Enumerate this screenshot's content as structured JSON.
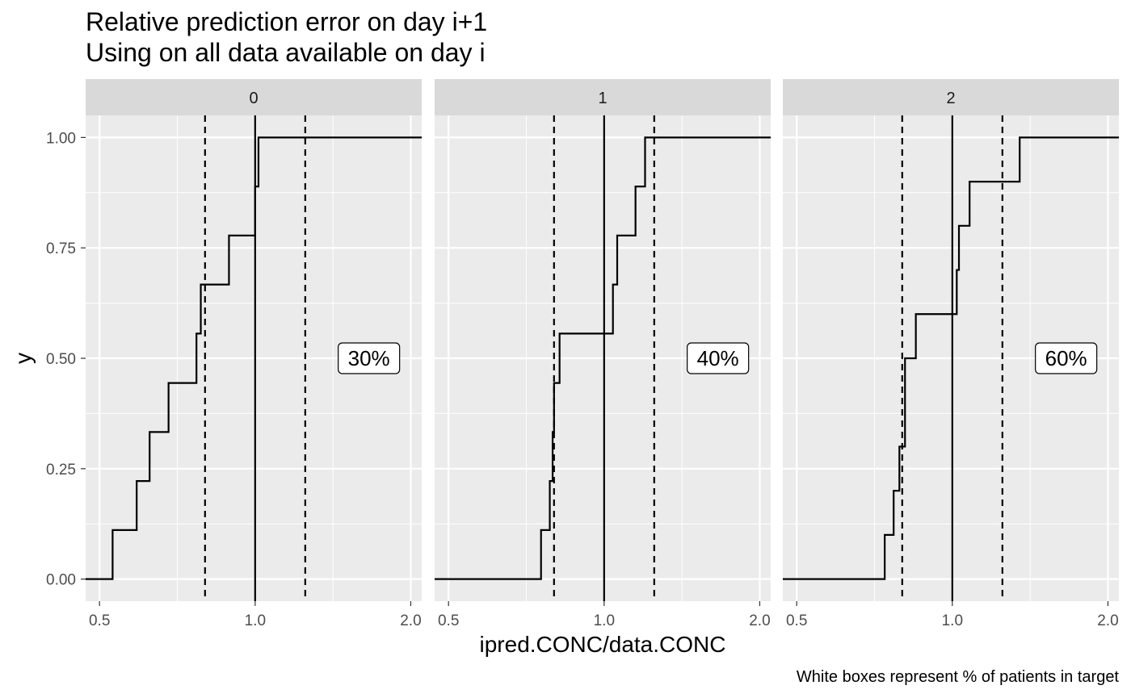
{
  "chart_data": {
    "type": "line",
    "subtype": "step-ecdf-faceted",
    "title": "Relative prediction error on day i+1",
    "subtitle": "Using on all data available on day i",
    "xlabel": "ipred.CONC/data.CONC",
    "ylabel": "y",
    "caption": "White boxes represent % of patients in target",
    "x_scale": "log",
    "xlim": [
      0.47,
      2.1
    ],
    "ylim": [
      -0.05,
      1.05
    ],
    "x_ticks": [
      0.5,
      1.0,
      2.0
    ],
    "x_tick_labels": [
      "0.5",
      "1.0",
      "2.0"
    ],
    "y_ticks": [
      0,
      0.25,
      0.5,
      0.75,
      1.0
    ],
    "y_tick_labels": [
      "0.00",
      "0.25",
      "0.50",
      "0.75",
      "1.00"
    ],
    "grid": true,
    "reference_lines": {
      "solid": 1.0,
      "dashed": [
        0.8,
        1.25
      ]
    },
    "annotation_y": 0.5,
    "annotation_x": 1.66,
    "facets": [
      {
        "label": "0",
        "annotation": "30%",
        "steps_x": [
          0.53,
          0.59,
          0.625,
          0.68,
          0.77,
          0.785,
          0.89,
          1.0,
          1.015
        ],
        "steps_y": [
          0.111,
          0.222,
          0.333,
          0.444,
          0.556,
          0.667,
          0.778,
          0.889,
          1.0
        ]
      },
      {
        "label": "1",
        "annotation": "40%",
        "steps_x": [
          0.755,
          0.785,
          0.795,
          0.8,
          0.82,
          1.04,
          1.06,
          1.15,
          1.2
        ],
        "steps_y": [
          0.111,
          0.222,
          0.333,
          0.444,
          0.556,
          0.667,
          0.778,
          0.889,
          1.0
        ]
      },
      {
        "label": "2",
        "annotation": "60%",
        "steps_x": [
          0.74,
          0.77,
          0.79,
          0.81,
          0.85,
          1.02,
          1.03,
          1.08,
          1.35
        ],
        "steps_y": [
          0.1,
          0.2,
          0.3,
          0.5,
          0.6,
          0.7,
          0.8,
          0.9,
          1.0
        ]
      }
    ]
  }
}
